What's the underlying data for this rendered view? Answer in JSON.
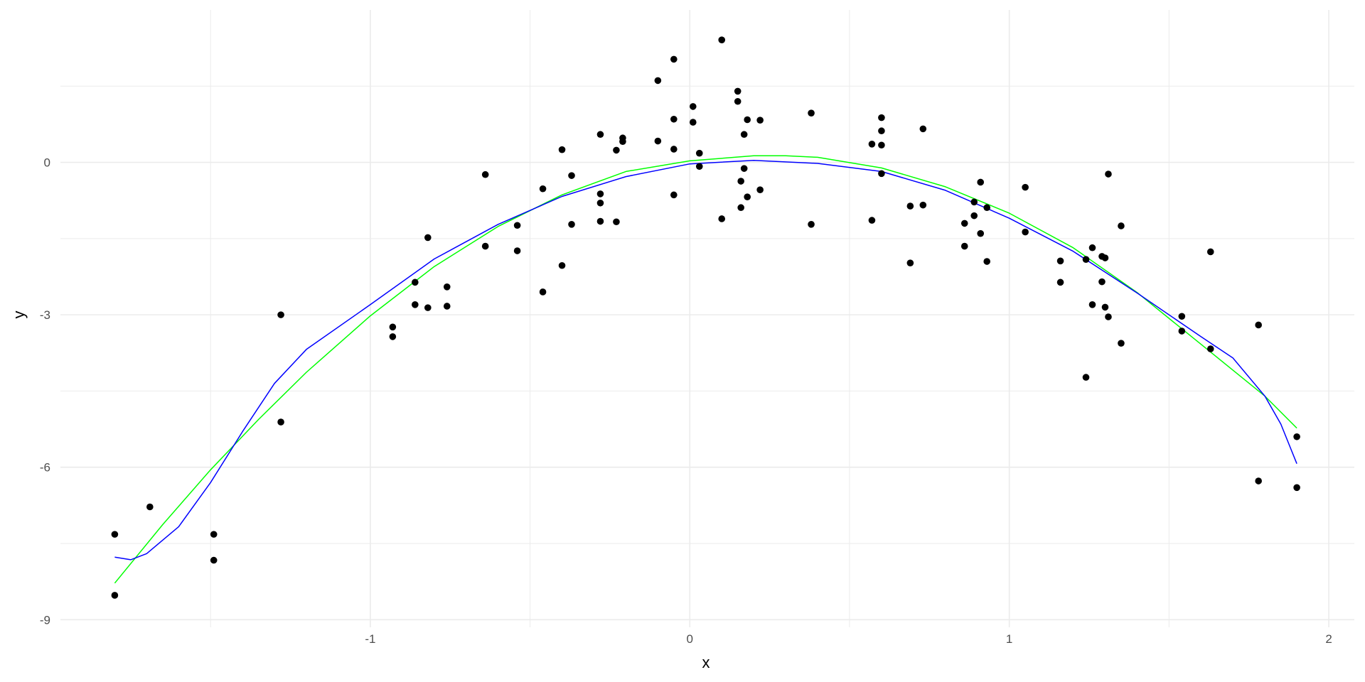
{
  "chart_data": {
    "type": "scatter",
    "title": "",
    "xlabel": "x",
    "ylabel": "y",
    "xlim": [
      -1.97,
      2.08
    ],
    "ylim": [
      -9.15,
      3.0
    ],
    "grid": true,
    "legend": "none",
    "x_ticks": [
      {
        "value": -1,
        "label": "-1"
      },
      {
        "value": 0,
        "label": "0"
      },
      {
        "value": 1,
        "label": "1"
      },
      {
        "value": 2,
        "label": "2"
      }
    ],
    "y_ticks": [
      {
        "value": -9,
        "label": "-9"
      },
      {
        "value": -6,
        "label": "-6"
      },
      {
        "value": -3,
        "label": "-3"
      },
      {
        "value": 0,
        "label": "0"
      }
    ],
    "x_minor": [
      -1.5,
      -0.5,
      0.5,
      1.5
    ],
    "y_minor": [
      -7.5,
      -4.5,
      -1.5,
      1.5
    ],
    "colors": {
      "points": "#000000",
      "green_curve": "#00ff00",
      "blue_curve": "#0000ff",
      "grid": "#ebebeb",
      "tick_text": "#4d4d4d"
    },
    "points": [
      [
        -1.8,
        -7.32
      ],
      [
        -1.8,
        -8.52
      ],
      [
        -1.69,
        -6.78
      ],
      [
        -1.49,
        -7.32
      ],
      [
        -1.49,
        -7.83
      ],
      [
        -1.28,
        -3.0
      ],
      [
        -1.28,
        -5.11
      ],
      [
        -0.93,
        -3.24
      ],
      [
        -0.93,
        -3.43
      ],
      [
        -0.86,
        -2.36
      ],
      [
        -0.86,
        -2.8
      ],
      [
        -0.82,
        -1.48
      ],
      [
        -0.82,
        -2.86
      ],
      [
        -0.76,
        -2.45
      ],
      [
        -0.76,
        -2.83
      ],
      [
        -0.64,
        -0.24
      ],
      [
        -0.64,
        -1.65
      ],
      [
        -0.54,
        -1.24
      ],
      [
        -0.54,
        -1.74
      ],
      [
        -0.46,
        -0.52
      ],
      [
        -0.46,
        -2.55
      ],
      [
        -0.4,
        0.25
      ],
      [
        -0.4,
        -2.03
      ],
      [
        -0.37,
        -0.26
      ],
      [
        -0.37,
        -1.22
      ],
      [
        -0.28,
        0.55
      ],
      [
        -0.28,
        -0.62
      ],
      [
        -0.28,
        -0.8
      ],
      [
        -0.28,
        -1.16
      ],
      [
        -0.23,
        0.24
      ],
      [
        -0.23,
        -1.17
      ],
      [
        -0.21,
        0.48
      ],
      [
        -0.21,
        0.41
      ],
      [
        -0.1,
        1.61
      ],
      [
        -0.1,
        0.42
      ],
      [
        -0.05,
        2.03
      ],
      [
        -0.05,
        0.85
      ],
      [
        -0.05,
        0.26
      ],
      [
        -0.05,
        -0.64
      ],
      [
        0.01,
        1.1
      ],
      [
        0.01,
        0.79
      ],
      [
        0.03,
        0.18
      ],
      [
        0.03,
        -0.08
      ],
      [
        0.1,
        2.41
      ],
      [
        0.1,
        -1.11
      ],
      [
        0.15,
        1.4
      ],
      [
        0.15,
        1.2
      ],
      [
        0.16,
        -0.37
      ],
      [
        0.16,
        -0.89
      ],
      [
        0.17,
        0.55
      ],
      [
        0.17,
        -0.12
      ],
      [
        0.18,
        0.84
      ],
      [
        0.18,
        -0.68
      ],
      [
        0.22,
        0.83
      ],
      [
        0.22,
        -0.54
      ],
      [
        0.38,
        0.97
      ],
      [
        0.38,
        -1.22
      ],
      [
        0.57,
        0.36
      ],
      [
        0.57,
        -1.14
      ],
      [
        0.6,
        0.88
      ],
      [
        0.6,
        0.62
      ],
      [
        0.6,
        0.34
      ],
      [
        0.6,
        -0.22
      ],
      [
        0.69,
        -0.86
      ],
      [
        0.69,
        -1.98
      ],
      [
        0.73,
        0.66
      ],
      [
        0.73,
        -0.84
      ],
      [
        0.86,
        -1.2
      ],
      [
        0.86,
        -1.65
      ],
      [
        0.89,
        -0.78
      ],
      [
        0.89,
        -1.05
      ],
      [
        0.91,
        -0.39
      ],
      [
        0.91,
        -1.4
      ],
      [
        0.93,
        -0.89
      ],
      [
        0.93,
        -1.95
      ],
      [
        1.05,
        -0.49
      ],
      [
        1.05,
        -1.37
      ],
      [
        1.16,
        -1.94
      ],
      [
        1.16,
        -2.36
      ],
      [
        1.24,
        -1.91
      ],
      [
        1.24,
        -4.23
      ],
      [
        1.26,
        -1.68
      ],
      [
        1.26,
        -2.8
      ],
      [
        1.29,
        -1.85
      ],
      [
        1.29,
        -2.35
      ],
      [
        1.3,
        -1.88
      ],
      [
        1.3,
        -2.85
      ],
      [
        1.31,
        -0.23
      ],
      [
        1.31,
        -3.04
      ],
      [
        1.35,
        -1.25
      ],
      [
        1.35,
        -3.56
      ],
      [
        1.54,
        -3.03
      ],
      [
        1.54,
        -3.32
      ],
      [
        1.63,
        -1.76
      ],
      [
        1.63,
        -3.67
      ],
      [
        1.78,
        -3.2
      ],
      [
        1.78,
        -6.27
      ],
      [
        1.9,
        -5.4
      ],
      [
        1.9,
        -6.4
      ]
    ],
    "green_curve": [
      [
        -1.8,
        -8.28
      ],
      [
        -1.65,
        -7.13
      ],
      [
        -1.5,
        -6.05
      ],
      [
        -1.35,
        -5.06
      ],
      [
        -1.2,
        -4.13
      ],
      [
        -1.0,
        -3.02
      ],
      [
        -0.8,
        -2.05
      ],
      [
        -0.6,
        -1.26
      ],
      [
        -0.4,
        -0.64
      ],
      [
        -0.2,
        -0.18
      ],
      [
        0.0,
        0.03
      ],
      [
        0.2,
        0.13
      ],
      [
        0.3,
        0.13
      ],
      [
        0.4,
        0.1
      ],
      [
        0.6,
        -0.11
      ],
      [
        0.8,
        -0.48
      ],
      [
        1.0,
        -1.0
      ],
      [
        1.2,
        -1.68
      ],
      [
        1.4,
        -2.56
      ],
      [
        1.6,
        -3.58
      ],
      [
        1.8,
        -4.6
      ],
      [
        1.9,
        -5.23
      ]
    ],
    "blue_curve": [
      [
        -1.8,
        -7.77
      ],
      [
        -1.75,
        -7.82
      ],
      [
        -1.7,
        -7.7
      ],
      [
        -1.6,
        -7.17
      ],
      [
        -1.5,
        -6.3
      ],
      [
        -1.4,
        -5.3
      ],
      [
        -1.3,
        -4.35
      ],
      [
        -1.2,
        -3.68
      ],
      [
        -1.0,
        -2.8
      ],
      [
        -0.8,
        -1.9
      ],
      [
        -0.6,
        -1.22
      ],
      [
        -0.4,
        -0.67
      ],
      [
        -0.2,
        -0.28
      ],
      [
        0.0,
        -0.03
      ],
      [
        0.2,
        0.04
      ],
      [
        0.4,
        -0.02
      ],
      [
        0.6,
        -0.18
      ],
      [
        0.8,
        -0.55
      ],
      [
        1.0,
        -1.1
      ],
      [
        1.2,
        -1.75
      ],
      [
        1.4,
        -2.57
      ],
      [
        1.6,
        -3.43
      ],
      [
        1.7,
        -3.85
      ],
      [
        1.8,
        -4.6
      ],
      [
        1.85,
        -5.15
      ],
      [
        1.9,
        -5.93
      ]
    ]
  }
}
